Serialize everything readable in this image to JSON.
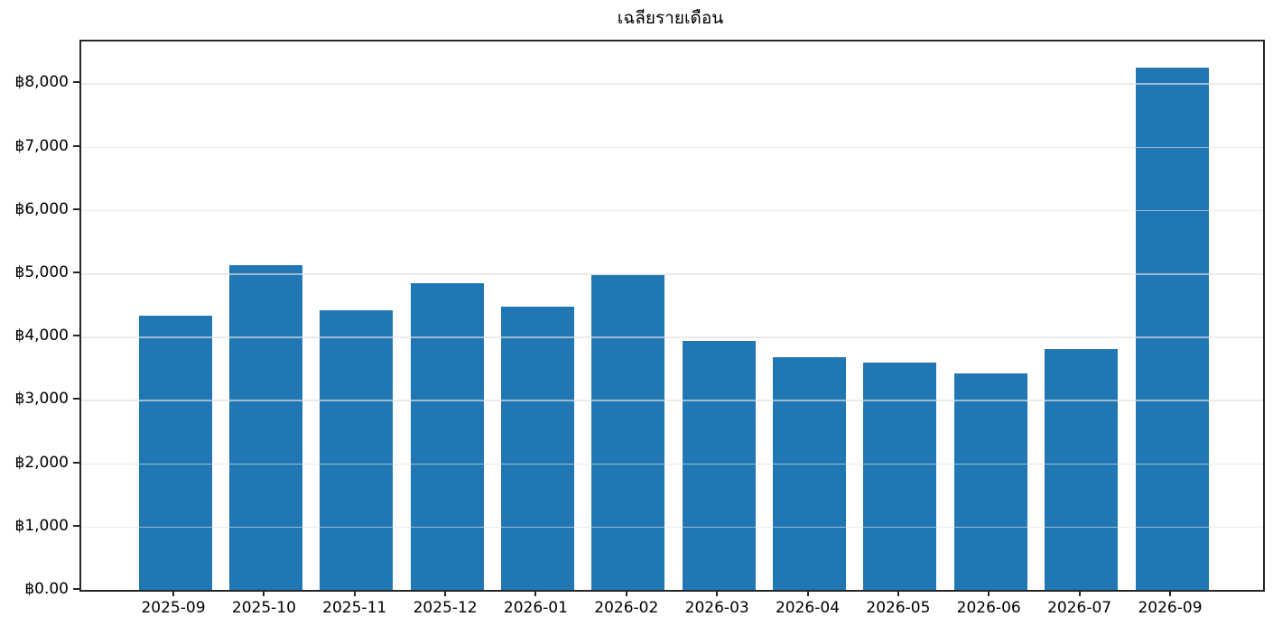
{
  "chart_data": {
    "type": "bar",
    "title": "เฉลียรายเดือน",
    "xlabel": "",
    "ylabel": "",
    "categories": [
      "2025-09",
      "2025-10",
      "2025-11",
      "2025-12",
      "2026-01",
      "2026-02",
      "2026-03",
      "2026-04",
      "2026-05",
      "2026-06",
      "2026-07",
      "2026-09"
    ],
    "values": [
      4330,
      5130,
      4420,
      4850,
      4470,
      4970,
      3930,
      3670,
      3590,
      3420,
      3800,
      8250
    ],
    "ytick_values": [
      0,
      1000,
      2000,
      3000,
      4000,
      5000,
      6000,
      7000,
      8000
    ],
    "ytick_labels": [
      "฿0.00",
      "฿1,000",
      "฿2,000",
      "฿3,000",
      "฿4,000",
      "฿5,000",
      "฿6,000",
      "฿7,000",
      "฿8,000"
    ],
    "ylim": [
      0,
      8660
    ],
    "currency_symbol": "฿",
    "bar_color": "#2077b4",
    "grid": "horizontal",
    "legend": "none",
    "background_color": "#ffffff",
    "spine_color": "#262626"
  }
}
